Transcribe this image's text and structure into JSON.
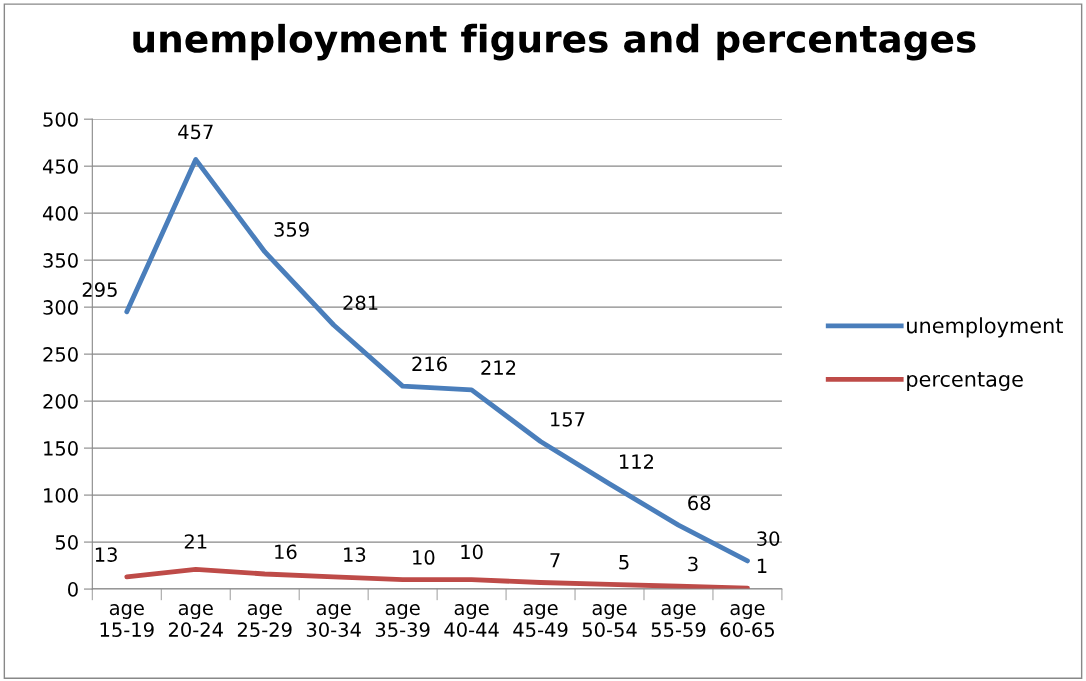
{
  "chart_data": {
    "type": "line",
    "title": "unemployment figures and percentages",
    "categories": [
      "age 15-19",
      "age 20-24",
      "age 25-29",
      "age 30-34",
      "age 35-39",
      "age 40-44",
      "age 45-49",
      "age 50-54",
      "age 55-59",
      "age 60-65"
    ],
    "series": [
      {
        "name": "unemployment",
        "color": "#4a7ebb",
        "values": [
          295,
          457,
          359,
          281,
          216,
          212,
          157,
          112,
          68,
          30
        ]
      },
      {
        "name": "percentage",
        "color": "#be4b48",
        "values": [
          13,
          21,
          16,
          13,
          10,
          10,
          7,
          5,
          3,
          1
        ]
      }
    ],
    "ylim": [
      0,
      500
    ],
    "yticks": [
      0,
      50,
      100,
      150,
      200,
      250,
      300,
      350,
      400,
      450,
      500
    ],
    "grid": "y",
    "legend": "right",
    "marker": "none",
    "line_style": "solid",
    "data_labels": true
  }
}
